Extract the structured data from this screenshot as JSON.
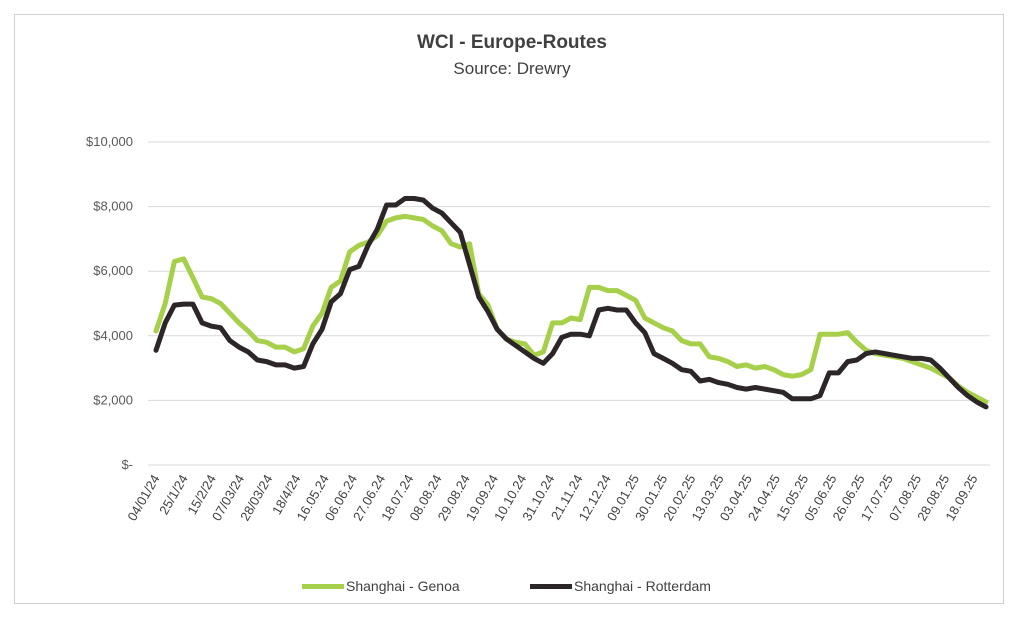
{
  "chart_data": {
    "type": "line",
    "title": "WCI - Europe-Routes",
    "subtitle": "Source: Drewry",
    "xlabel": "",
    "ylabel": "",
    "ylim": [
      0,
      10000
    ],
    "yticks": [
      0,
      2000,
      4000,
      6000,
      8000,
      10000
    ],
    "ytick_labels": [
      "$-",
      "$2,000",
      "$4,000",
      "$6,000",
      "$8,000",
      "$10,000"
    ],
    "grid": true,
    "legend_position": "bottom",
    "x_tick_labels": [
      "04/01/24",
      "25/1/24",
      "15/2/24",
      "07/03/24",
      "28/03/24",
      "18/4/24",
      "16.05.24",
      "06.06.24",
      "27.06.24",
      "18.07.24",
      "08.08.24",
      "29.08.24",
      "19.09.24",
      "10.10.24",
      "31.10.24",
      "21.11.24",
      "12.12.24",
      "09.01.25",
      "30.01.25",
      "20.02.25",
      "13.03.25",
      "03.04.25",
      "24.04.25",
      "15.05.25",
      "05.06.25",
      "26.06.25",
      "17.07.25",
      "07.08.25",
      "28.08.25",
      "18.09.25"
    ],
    "series": [
      {
        "name": "Shanghai - Genoa",
        "color": "#a6cf4a",
        "values": [
          4150,
          5000,
          6300,
          6380,
          5800,
          5200,
          5150,
          5000,
          4700,
          4400,
          4150,
          3850,
          3800,
          3650,
          3650,
          3500,
          3600,
          4300,
          4700,
          5500,
          5700,
          6600,
          6800,
          6900,
          7100,
          7550,
          7650,
          7700,
          7650,
          7600,
          7400,
          7250,
          6850,
          6750,
          6850,
          5300,
          4950,
          4200,
          3900,
          3800,
          3750,
          3400,
          3500,
          4400,
          4400,
          4550,
          4500,
          5500,
          5500,
          5400,
          5400,
          5250,
          5100,
          4550,
          4400,
          4250,
          4150,
          3850,
          3750,
          3750,
          3350,
          3300,
          3200,
          3050,
          3100,
          3000,
          3050,
          2950,
          2800,
          2750,
          2800,
          2950,
          4050,
          4050,
          4050,
          4100,
          3800,
          3550,
          3450,
          3400,
          3350,
          3300,
          3200,
          3100,
          3000,
          2850,
          2700,
          2450,
          2250,
          2100,
          1950
        ]
      },
      {
        "name": "Shanghai - Rotterdam",
        "color": "#2d2628",
        "values": [
          3550,
          4400,
          4950,
          4980,
          4980,
          4400,
          4300,
          4250,
          3850,
          3650,
          3500,
          3250,
          3200,
          3100,
          3100,
          3000,
          3050,
          3750,
          4200,
          5050,
          5300,
          6050,
          6150,
          6800,
          7300,
          8050,
          8050,
          8250,
          8250,
          8200,
          7950,
          7800,
          7500,
          7200,
          6200,
          5200,
          4750,
          4200,
          3900,
          3700,
          3500,
          3300,
          3150,
          3450,
          3950,
          4050,
          4050,
          4000,
          4800,
          4850,
          4800,
          4800,
          4400,
          4100,
          3450,
          3300,
          3150,
          2950,
          2900,
          2600,
          2650,
          2550,
          2500,
          2400,
          2350,
          2400,
          2350,
          2300,
          2250,
          2050,
          2050,
          2050,
          2150,
          2850,
          2850,
          3200,
          3250,
          3450,
          3500,
          3450,
          3400,
          3350,
          3300,
          3300,
          3250,
          3000,
          2700,
          2400,
          2150,
          1950,
          1800
        ]
      }
    ]
  }
}
